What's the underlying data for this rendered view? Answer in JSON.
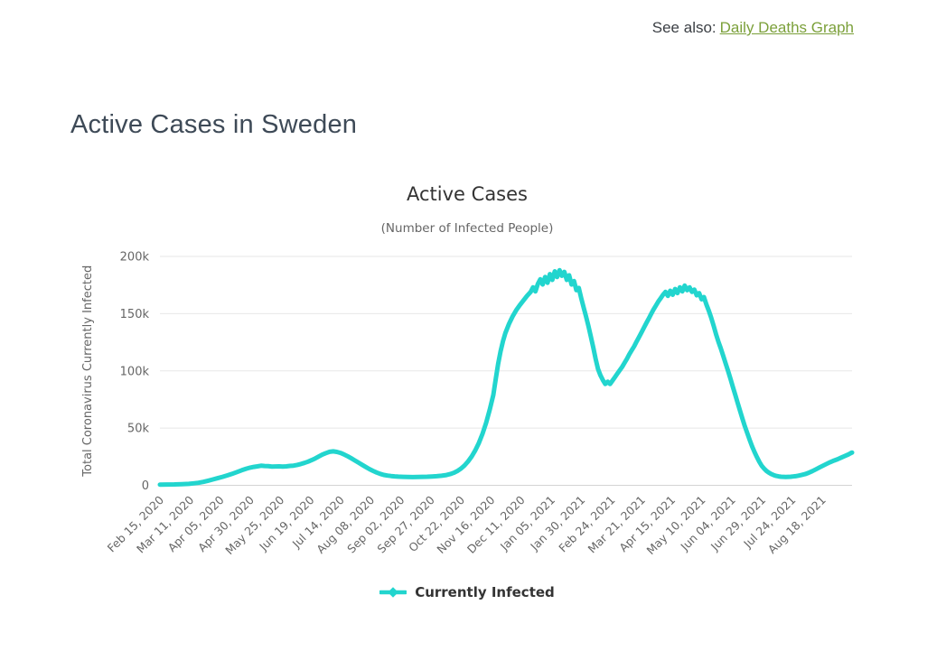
{
  "header": {
    "see_also_label": "See also:",
    "see_also_link": "Daily Deaths Graph",
    "page_title": "Active Cases in Sweden"
  },
  "colors": {
    "series_line": "#22d5ce",
    "link_green": "#7ba03a",
    "heading_text": "#3e4a57",
    "chart_title_text": "#333333",
    "axis_label_text": "#666666",
    "gridline": "#e7e7e7",
    "axis_line": "#d4d4d4"
  },
  "chart_data": {
    "type": "line",
    "title": "Active Cases",
    "subtitle": "(Number of Infected People)",
    "legend_position": "bottom-center",
    "grid": "horizontal-only",
    "x_axis": {
      "start_date": "Feb 15, 2020",
      "tick_interval_days": 25,
      "total_days": 575,
      "tick_labels": [
        "Feb 15, 2020",
        "Mar 11, 2020",
        "Apr 05, 2020",
        "Apr 30, 2020",
        "May 25, 2020",
        "Jun 19, 2020",
        "Jul 14, 2020",
        "Aug 08, 2020",
        "Sep 02, 2020",
        "Sep 27, 2020",
        "Oct 22, 2020",
        "Nov 16, 2020",
        "Dec 11, 2020",
        "Jan 05, 2021",
        "Jan 30, 2021",
        "Feb 24, 2021",
        "Mar 21, 2021",
        "Apr 15, 2021",
        "May 10, 2021",
        "Jun 04, 2021",
        "Jun 29, 2021",
        "Jul 24, 2021",
        "Aug 18, 2021"
      ],
      "label_rotation_deg": -45
    },
    "y_axis": {
      "title": "Total Coronavirus Currently Infected",
      "min": 0,
      "max": 200000,
      "ticks": [
        {
          "label": "0",
          "value": 0
        },
        {
          "label": "50k",
          "value": 50000
        },
        {
          "label": "100k",
          "value": 100000
        },
        {
          "label": "150k",
          "value": 150000
        },
        {
          "label": "200k",
          "value": 200000
        }
      ]
    },
    "series": [
      {
        "name": "Currently Infected",
        "color": "#22d5ce",
        "marker": "diamond",
        "points_format": "[day_offset_from_Feb_15_2020, active_cases]",
        "points": [
          [
            0,
            600
          ],
          [
            6,
            700
          ],
          [
            12,
            800
          ],
          [
            18,
            1000
          ],
          [
            24,
            1300
          ],
          [
            28,
            1700
          ],
          [
            32,
            2200
          ],
          [
            36,
            3000
          ],
          [
            40,
            4000
          ],
          [
            44,
            5100
          ],
          [
            48,
            6200
          ],
          [
            52,
            7400
          ],
          [
            56,
            8700
          ],
          [
            60,
            10000
          ],
          [
            64,
            11600
          ],
          [
            68,
            13200
          ],
          [
            72,
            14600
          ],
          [
            75,
            15500
          ],
          [
            78,
            16100
          ],
          [
            81,
            16600
          ],
          [
            84,
            17100
          ],
          [
            87,
            16900
          ],
          [
            90,
            16700
          ],
          [
            93,
            16400
          ],
          [
            96,
            16500
          ],
          [
            99,
            16600
          ],
          [
            102,
            16300
          ],
          [
            105,
            16600
          ],
          [
            108,
            17000
          ],
          [
            111,
            17200
          ],
          [
            114,
            17800
          ],
          [
            117,
            18600
          ],
          [
            120,
            19600
          ],
          [
            123,
            20700
          ],
          [
            126,
            22000
          ],
          [
            129,
            23500
          ],
          [
            132,
            25200
          ],
          [
            135,
            26900
          ],
          [
            138,
            28200
          ],
          [
            141,
            29300
          ],
          [
            144,
            29700
          ],
          [
            147,
            29200
          ],
          [
            150,
            28300
          ],
          [
            153,
            27000
          ],
          [
            156,
            25400
          ],
          [
            159,
            23600
          ],
          [
            162,
            21700
          ],
          [
            165,
            19800
          ],
          [
            168,
            17900
          ],
          [
            171,
            16000
          ],
          [
            174,
            14200
          ],
          [
            177,
            12600
          ],
          [
            180,
            11200
          ],
          [
            183,
            10000
          ],
          [
            186,
            9100
          ],
          [
            189,
            8500
          ],
          [
            192,
            8100
          ],
          [
            195,
            7800
          ],
          [
            198,
            7600
          ],
          [
            202,
            7400
          ],
          [
            206,
            7300
          ],
          [
            210,
            7200
          ],
          [
            214,
            7300
          ],
          [
            218,
            7400
          ],
          [
            222,
            7500
          ],
          [
            226,
            7700
          ],
          [
            230,
            8000
          ],
          [
            234,
            8400
          ],
          [
            238,
            9000
          ],
          [
            241,
            9800
          ],
          [
            244,
            10900
          ],
          [
            247,
            12400
          ],
          [
            250,
            14500
          ],
          [
            253,
            17300
          ],
          [
            256,
            20800
          ],
          [
            259,
            25200
          ],
          [
            262,
            30500
          ],
          [
            265,
            37000
          ],
          [
            268,
            45000
          ],
          [
            271,
            54500
          ],
          [
            274,
            66000
          ],
          [
            277,
            79000
          ],
          [
            279,
            93000
          ],
          [
            281,
            106000
          ],
          [
            283,
            117000
          ],
          [
            285,
            126000
          ],
          [
            287,
            133000
          ],
          [
            290,
            141000
          ],
          [
            293,
            147500
          ],
          [
            296,
            153000
          ],
          [
            299,
            157500
          ],
          [
            302,
            161500
          ],
          [
            305,
            165500
          ],
          [
            308,
            169000
          ],
          [
            310,
            173000
          ],
          [
            312,
            169500
          ],
          [
            314,
            176000
          ],
          [
            316,
            180000
          ],
          [
            318,
            175500
          ],
          [
            320,
            182000
          ],
          [
            322,
            177000
          ],
          [
            324,
            184500
          ],
          [
            326,
            179500
          ],
          [
            328,
            187000
          ],
          [
            330,
            182000
          ],
          [
            332,
            188000
          ],
          [
            334,
            183000
          ],
          [
            336,
            186500
          ],
          [
            338,
            179500
          ],
          [
            340,
            183500
          ],
          [
            342,
            175500
          ],
          [
            344,
            178500
          ],
          [
            346,
            170500
          ],
          [
            348,
            172500
          ],
          [
            350,
            163500
          ],
          [
            352,
            155500
          ],
          [
            354,
            147500
          ],
          [
            356,
            139000
          ],
          [
            358,
            130000
          ],
          [
            360,
            120500
          ],
          [
            362,
            110500
          ],
          [
            364,
            101500
          ],
          [
            366,
            96000
          ],
          [
            368,
            92000
          ],
          [
            370,
            88500
          ],
          [
            372,
            90500
          ],
          [
            374,
            88500
          ],
          [
            376,
            91500
          ],
          [
            378,
            94500
          ],
          [
            380,
            97500
          ],
          [
            382,
            100500
          ],
          [
            384,
            103500
          ],
          [
            386,
            107000
          ],
          [
            388,
            110500
          ],
          [
            390,
            114500
          ],
          [
            392,
            118000
          ],
          [
            394,
            121500
          ],
          [
            396,
            125500
          ],
          [
            398,
            129500
          ],
          [
            400,
            133500
          ],
          [
            402,
            137500
          ],
          [
            404,
            141500
          ],
          [
            406,
            145500
          ],
          [
            408,
            149500
          ],
          [
            410,
            153500
          ],
          [
            412,
            157000
          ],
          [
            414,
            160500
          ],
          [
            416,
            163500
          ],
          [
            418,
            166500
          ],
          [
            420,
            169000
          ],
          [
            422,
            165500
          ],
          [
            424,
            170000
          ],
          [
            426,
            166500
          ],
          [
            428,
            171500
          ],
          [
            430,
            168000
          ],
          [
            432,
            173000
          ],
          [
            434,
            169500
          ],
          [
            436,
            174500
          ],
          [
            438,
            170500
          ],
          [
            440,
            173000
          ],
          [
            442,
            169000
          ],
          [
            444,
            171000
          ],
          [
            446,
            166000
          ],
          [
            448,
            168000
          ],
          [
            450,
            162500
          ],
          [
            452,
            164500
          ],
          [
            454,
            158000
          ],
          [
            456,
            152500
          ],
          [
            458,
            146500
          ],
          [
            460,
            139500
          ],
          [
            462,
            132000
          ],
          [
            464,
            125500
          ],
          [
            466,
            119500
          ],
          [
            468,
            113000
          ],
          [
            470,
            106500
          ],
          [
            472,
            100000
          ],
          [
            474,
            93000
          ],
          [
            476,
            86000
          ],
          [
            478,
            79000
          ],
          [
            480,
            72000
          ],
          [
            482,
            65000
          ],
          [
            484,
            58000
          ],
          [
            486,
            51500
          ],
          [
            488,
            45500
          ],
          [
            490,
            39500
          ],
          [
            492,
            34000
          ],
          [
            494,
            29000
          ],
          [
            496,
            24500
          ],
          [
            498,
            20500
          ],
          [
            500,
            17000
          ],
          [
            502,
            14500
          ],
          [
            504,
            12500
          ],
          [
            506,
            11000
          ],
          [
            508,
            9800
          ],
          [
            510,
            8900
          ],
          [
            512,
            8200
          ],
          [
            514,
            7800
          ],
          [
            516,
            7500
          ],
          [
            518,
            7400
          ],
          [
            520,
            7300
          ],
          [
            522,
            7400
          ],
          [
            524,
            7500
          ],
          [
            526,
            7700
          ],
          [
            528,
            8000
          ],
          [
            530,
            8400
          ],
          [
            533,
            9000
          ],
          [
            536,
            9800
          ],
          [
            539,
            11000
          ],
          [
            542,
            12400
          ],
          [
            545,
            14000
          ],
          [
            548,
            15600
          ],
          [
            551,
            17200
          ],
          [
            554,
            18800
          ],
          [
            557,
            20300
          ],
          [
            560,
            21600
          ],
          [
            563,
            22800
          ],
          [
            566,
            24200
          ],
          [
            569,
            25600
          ],
          [
            572,
            27000
          ],
          [
            574,
            28200
          ],
          [
            575,
            28600
          ]
        ]
      }
    ]
  }
}
